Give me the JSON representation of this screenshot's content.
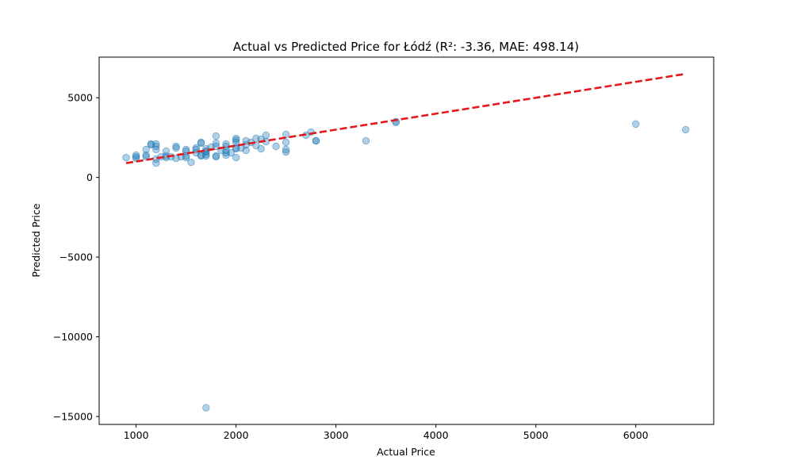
{
  "chart_data": {
    "type": "scatter",
    "title": "Actual vs Predicted Price for Łódź (R²: -3.36, MAE: 498.14)",
    "xlabel": "Actual Price",
    "ylabel": "Predicted Price",
    "xlim": [
      630,
      6780
    ],
    "ylim": [
      -15500,
      7550
    ],
    "xticks": [
      1000,
      2000,
      3000,
      4000,
      5000,
      6000
    ],
    "xtick_labels": [
      "1000",
      "2000",
      "3000",
      "4000",
      "5000",
      "6000"
    ],
    "yticks": [
      -15000,
      -10000,
      -5000,
      0,
      5000
    ],
    "ytick_labels": [
      "−15000",
      "−10000",
      "−5000",
      "0",
      "5000"
    ],
    "grid": false,
    "point_color": "#1f77b4",
    "line_color": "#e31a1c",
    "series": [
      {
        "x": [
          900,
          1000,
          1000,
          1000,
          1100,
          1100,
          1100,
          1150,
          1150,
          1200,
          1200,
          1200,
          1200,
          1200,
          1250,
          1300,
          1300,
          1300,
          1350,
          1400,
          1400,
          1400,
          1450,
          1500,
          1500,
          1500,
          1500,
          1550,
          1600,
          1600,
          1600,
          1650,
          1650,
          1650,
          1650,
          1700,
          1700,
          1700,
          1700,
          1700,
          1750,
          1800,
          1800,
          1800,
          1800,
          1800,
          1850,
          1900,
          1900,
          1900,
          1900,
          1900,
          1950,
          2000,
          2000,
          2000,
          2000,
          2000,
          2000,
          2050,
          2100,
          2100,
          2100,
          2150,
          2200,
          2200,
          2250,
          2250,
          2300,
          2300,
          2400,
          2500,
          2500,
          2500,
          2500,
          2700,
          2750,
          2800,
          2800,
          3300,
          3600,
          3600,
          6000,
          6500,
          1700
        ],
        "y": [
          1250,
          1200,
          1400,
          1300,
          1750,
          1300,
          1400,
          2100,
          2050,
          2100,
          1950,
          1750,
          1150,
          900,
          1300,
          1650,
          1350,
          1250,
          1300,
          1950,
          1850,
          1200,
          1300,
          1750,
          1650,
          1350,
          1250,
          950,
          1850,
          1750,
          1550,
          2200,
          2150,
          1400,
          1350,
          1800,
          1650,
          1600,
          1450,
          1350,
          1900,
          2600,
          2150,
          1950,
          1350,
          1300,
          1700,
          2100,
          1950,
          1700,
          1550,
          1400,
          1550,
          2450,
          2350,
          2200,
          1850,
          1800,
          1250,
          1850,
          2300,
          2050,
          1700,
          2200,
          2450,
          2000,
          2400,
          1800,
          2650,
          2250,
          1950,
          2700,
          2200,
          1750,
          1600,
          2650,
          2850,
          2300,
          2300,
          2300,
          3500,
          3450,
          3350,
          3000,
          -14450
        ]
      }
    ],
    "reference_line": {
      "x": [
        900,
        6500
      ],
      "y": [
        900,
        6500
      ],
      "style": "dashed"
    }
  }
}
